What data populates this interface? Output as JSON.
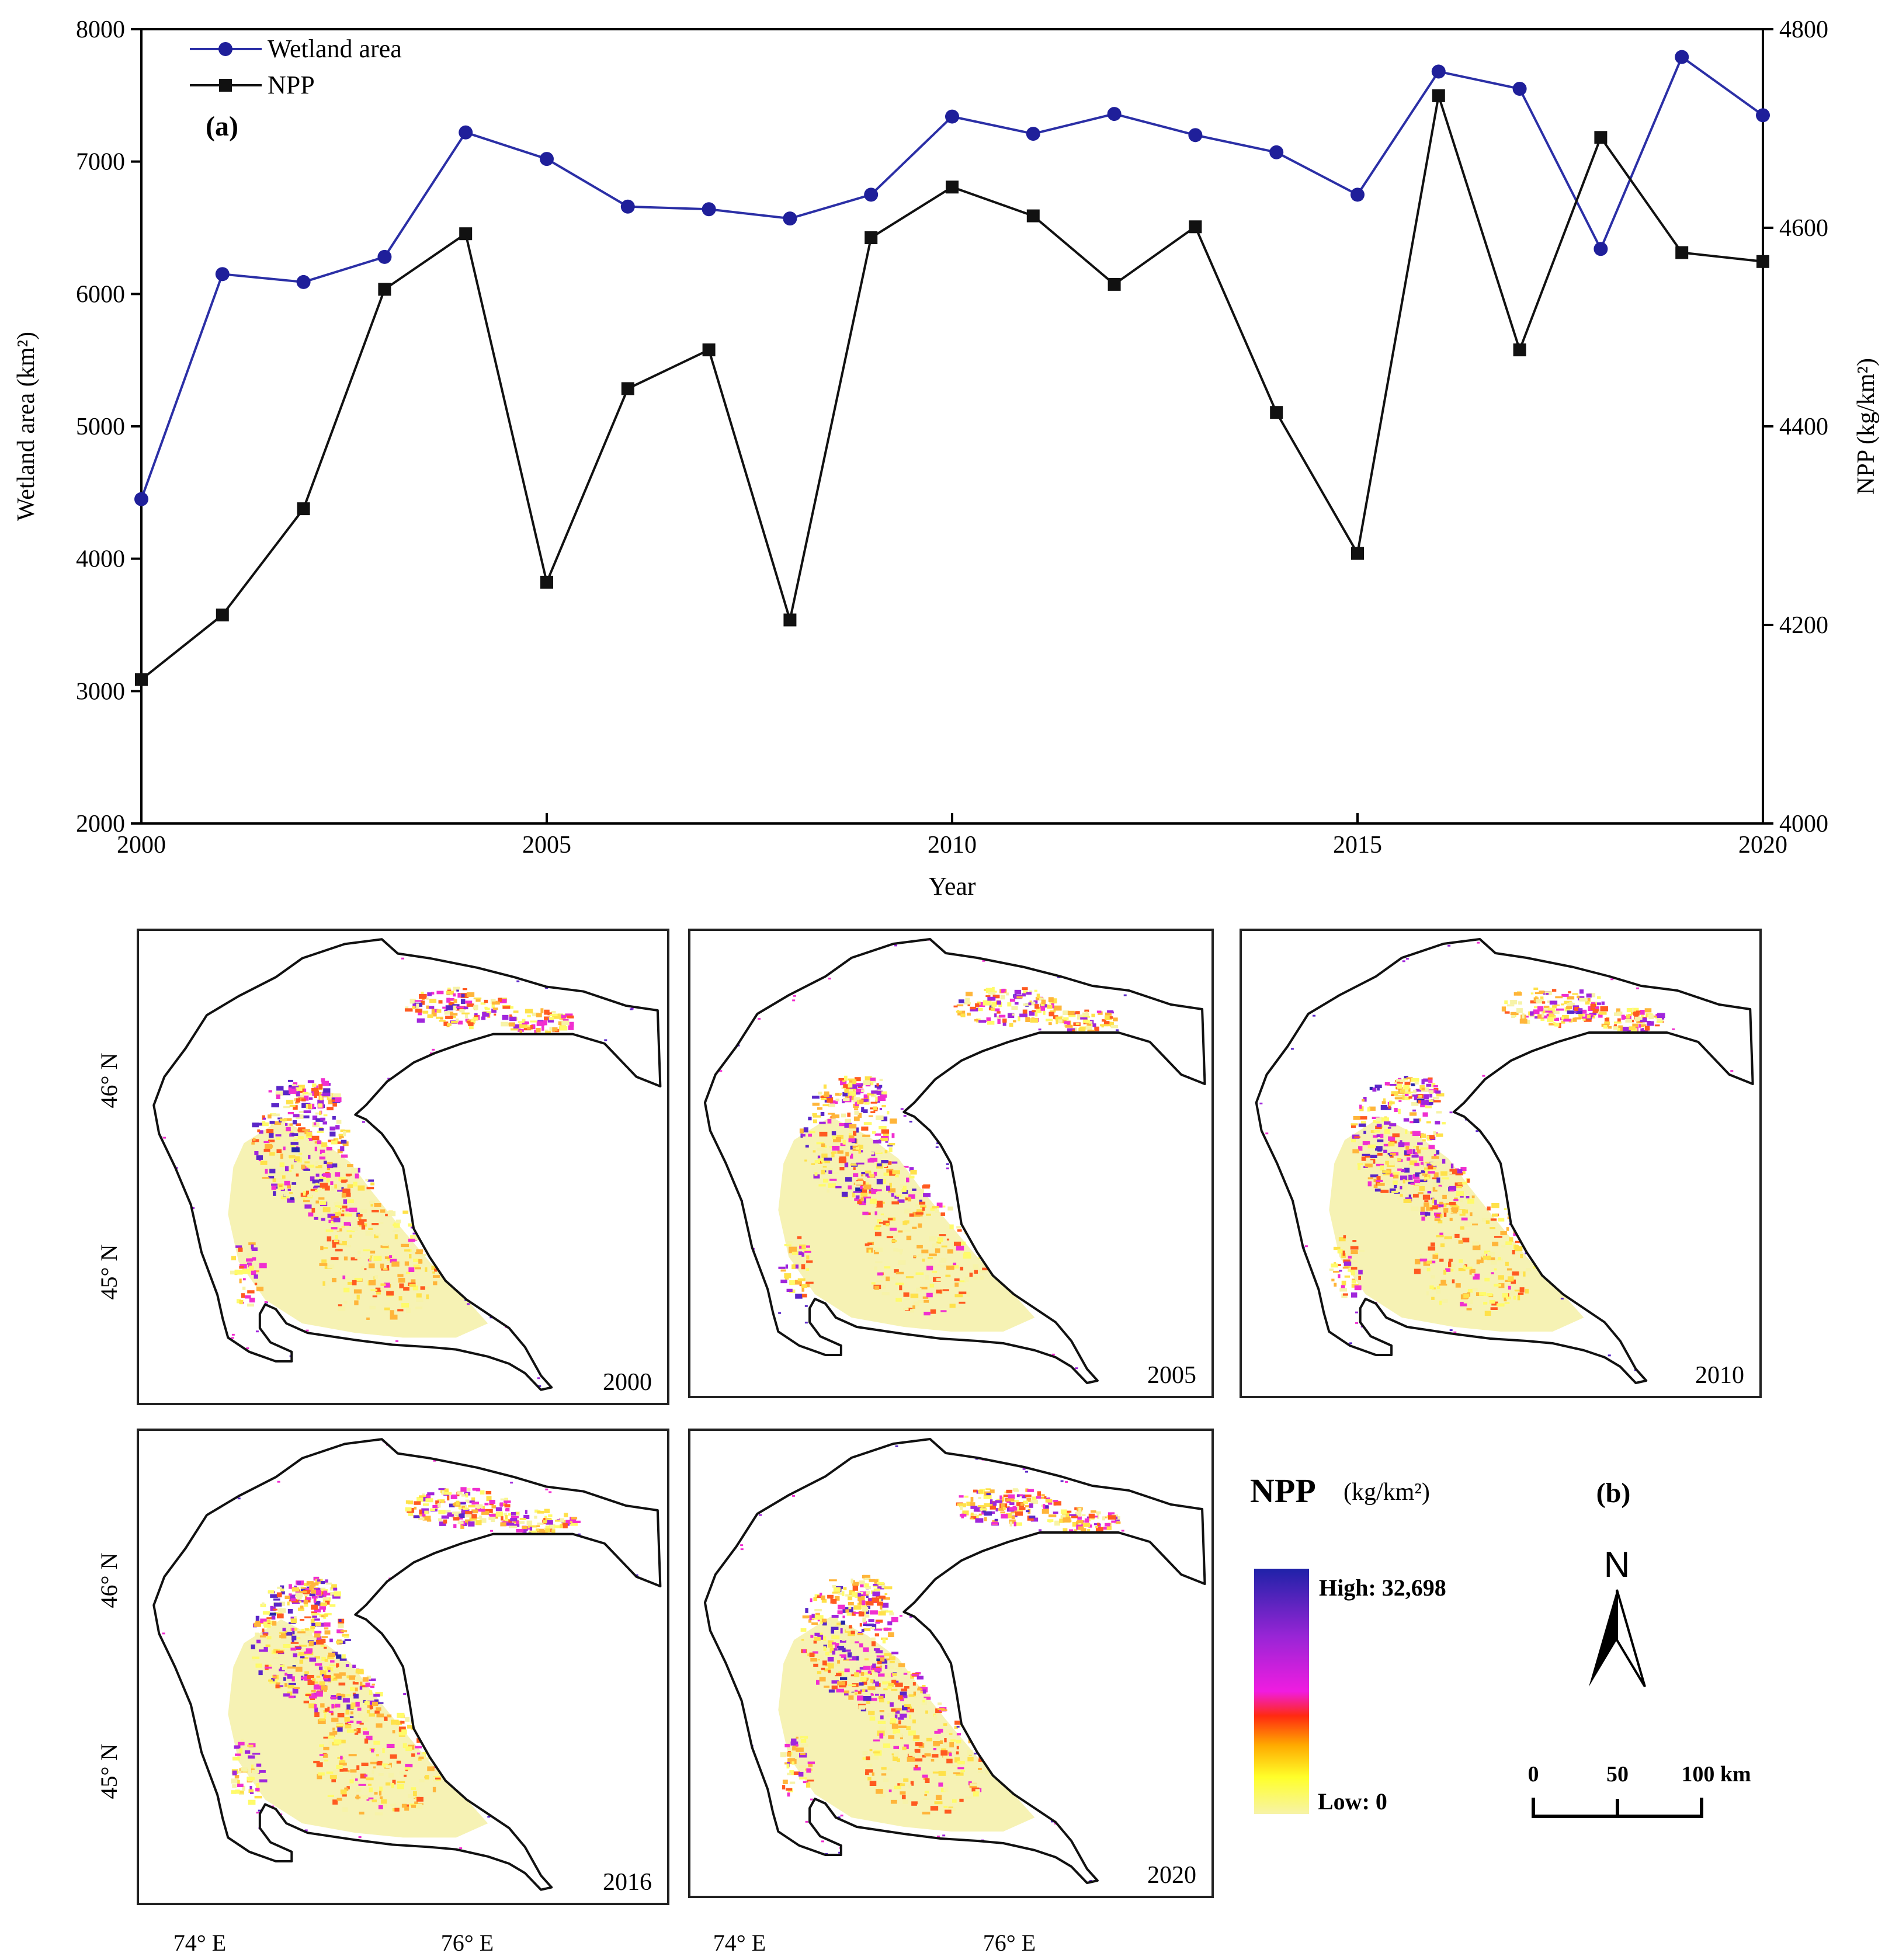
{
  "chart_data": [
    {
      "type": "line",
      "panel_label": "(a)",
      "x": [
        2000,
        2001,
        2002,
        2003,
        2004,
        2005,
        2006,
        2007,
        2008,
        2009,
        2010,
        2011,
        2012,
        2013,
        2014,
        2015,
        2016,
        2017,
        2018,
        2019,
        2020
      ],
      "series": [
        {
          "name": "Wetland area",
          "axis": "left",
          "color": "#2b2fa6",
          "marker": "circle",
          "values": [
            4450,
            6150,
            6090,
            6280,
            7220,
            7020,
            6660,
            6640,
            6570,
            6750,
            7340,
            7210,
            7360,
            7200,
            7070,
            6750,
            7680,
            7550,
            6340,
            7790,
            7350
          ]
        },
        {
          "name": "NPP",
          "axis": "right",
          "color": "#111111",
          "marker": "square",
          "values": [
            4145,
            4210,
            4317,
            4538,
            4594,
            4243,
            4438,
            4477,
            4205,
            4590,
            4641,
            4612,
            4543,
            4601,
            4414,
            4272,
            4733,
            4477,
            4691,
            4575,
            4566
          ]
        }
      ],
      "xlabel": "Year",
      "ylabel_left": "Wetland area (km²)",
      "ylabel_right": "NPP (kg/km²)",
      "xlim": [
        2000,
        2020
      ],
      "ylim_left": [
        2000,
        8000
      ],
      "ylim_right": [
        4000,
        4800
      ],
      "xticks": [
        "2000",
        "2005",
        "2010",
        "2015",
        "2020"
      ],
      "yticks_left": [
        "2000",
        "3000",
        "4000",
        "5000",
        "6000",
        "7000",
        "8000"
      ],
      "yticks_right": [
        "4000",
        "4200",
        "4400",
        "4600",
        "4800"
      ],
      "grid": false,
      "legend": "top-left"
    },
    {
      "type": "heatmap",
      "panel_label": "(b)",
      "maps": [
        {
          "year": "2000",
          "intensity": 1.0
        },
        {
          "year": "2005",
          "intensity": 0.95
        },
        {
          "year": "2010",
          "intensity": 1.05
        },
        {
          "year": "2016",
          "intensity": 1.2
        },
        {
          "year": "2020",
          "intensity": 1.1
        }
      ],
      "lat_ticks": [
        "46° N",
        "45° N"
      ],
      "lon_ticks": [
        "74° E",
        "76° E"
      ],
      "legend": {
        "title": "NPP",
        "unit": "(kg/km²)",
        "high": "High: 32,698",
        "low": "Low: 0",
        "colors": [
          "#1f22a8",
          "#9a25d6",
          "#f01ce0",
          "#ff2a10",
          "#ffaa00",
          "#ffff2a",
          "#f7f3a8"
        ]
      },
      "north_arrow": "N",
      "scale_bar": [
        "0",
        "50",
        "100 km"
      ]
    }
  ]
}
